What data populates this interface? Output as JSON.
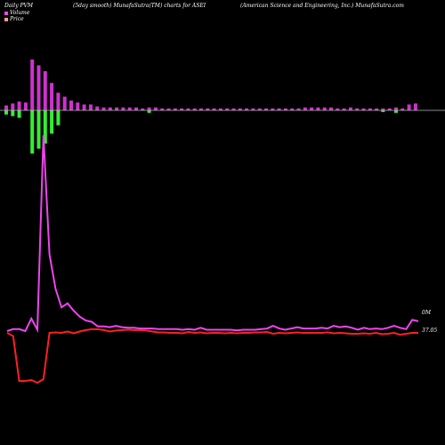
{
  "header": {
    "left": "Daily PVM",
    "center": "(5day smooth) MunafaSutra(TM) charts for ASEI",
    "right": "(American  Science  and Engineering, Inc.) MunafaSutra.com"
  },
  "legend": {
    "volume_label": "Volume",
    "price_label": "Price"
  },
  "colors": {
    "background": "#000000",
    "volume_line": "#ee44ee",
    "price_line": "#ff2020",
    "bar_up": "#cc33cc",
    "bar_down": "#33ee33",
    "axis": "#bbbbbb"
  },
  "chart_data": {
    "type": "line",
    "title": "Daily PVM",
    "series": [
      {
        "name": "Volume",
        "values": [
          0.2,
          0.35,
          0.35,
          0.2,
          1.15,
          0.3,
          15,
          6,
          3.4,
          2,
          2.3,
          1.75,
          1.3,
          1,
          0.9,
          0.55,
          0.55,
          0.5,
          0.6,
          0.5,
          0.45,
          0.45,
          0.4,
          0.4,
          0.4,
          0.35,
          0.35,
          0.35,
          0.35,
          0.3,
          0.35,
          0.3,
          0.45,
          0.3,
          0.3,
          0.3,
          0.3,
          0.3,
          0.25,
          0.3,
          0.3,
          0.3,
          0.35,
          0.4,
          0.6,
          0.4,
          0.3,
          0.4,
          0.5,
          0.4,
          0.4,
          0.4,
          0.45,
          0.4,
          0.6,
          0.5,
          0.55,
          0.45,
          0.3,
          0.45,
          0.35,
          0.4,
          0.35,
          0.45,
          0.6,
          0.45,
          0.35,
          1.05,
          0.95
        ]
      },
      {
        "name": "Price",
        "values": [
          37.05,
          36.7,
          31.8,
          31.8,
          31.9,
          31.6,
          32,
          37.05,
          37.1,
          37.05,
          37.2,
          37,
          37.2,
          37.35,
          37.45,
          37.45,
          37.35,
          37.2,
          37.3,
          37.35,
          37.4,
          37.35,
          37.35,
          37.3,
          37.2,
          37.1,
          37.1,
          37.05,
          37.05,
          37,
          37.15,
          37.05,
          37.1,
          37,
          37.05,
          37.05,
          37,
          37.05,
          37,
          37.05,
          37.05,
          37.1,
          37.1,
          37.15,
          36.95,
          37.05,
          37,
          37.05,
          37.1,
          37.05,
          37.05,
          37.05,
          37.05,
          37.1,
          37,
          37.05,
          37,
          36.95,
          36.95,
          37,
          36.95,
          37.05,
          36.9,
          36.95,
          37.05,
          36.85,
          36.95,
          37.05,
          37.05
        ]
      }
    ],
    "volume_bars": [
      0.25,
      0.35,
      0.45,
      0.4,
      2.6,
      2.3,
      2.0,
      1.4,
      0.9,
      0.7,
      0.5,
      0.4,
      0.3,
      0.3,
      0.2,
      0.15,
      0.15,
      0.15,
      0.15,
      0.15,
      0.15,
      0.1,
      0.15,
      0.15,
      0.1,
      0.1,
      0.1,
      0.1,
      0.1,
      0.1,
      0.1,
      0.1,
      0.1,
      0.1,
      0.1,
      0.1,
      0.1,
      0.1,
      0.1,
      0.1,
      0.1,
      0.1,
      0.1,
      0.1,
      0.1,
      0.1,
      0.15,
      0.15,
      0.15,
      0.15,
      0.15,
      0.1,
      0.1,
      0.15,
      0.1,
      0.1,
      0.1,
      0.1,
      0.1,
      0.1,
      0.15,
      0.1,
      0.3,
      0.35
    ],
    "volume_bar_directions": [
      "down",
      "down",
      "down",
      "up",
      "down",
      "down",
      "down",
      "down",
      "down",
      "up",
      "up",
      "up",
      "up",
      "up",
      "up",
      "up",
      "up",
      "up",
      "up",
      "up",
      "up",
      "up",
      "down",
      "up",
      "up",
      "up",
      "up",
      "up",
      "up",
      "up",
      "up",
      "up",
      "up",
      "up",
      "up",
      "up",
      "up",
      "up",
      "up",
      "up",
      "up",
      "up",
      "up",
      "up",
      "up",
      "up",
      "up",
      "up",
      "up",
      "up",
      "up",
      "up",
      "up",
      "up",
      "up",
      "up",
      "up",
      "up",
      "down",
      "up",
      "down",
      "up",
      "up",
      "up"
    ],
    "price_label": "37.05",
    "volume_label": "0M"
  }
}
